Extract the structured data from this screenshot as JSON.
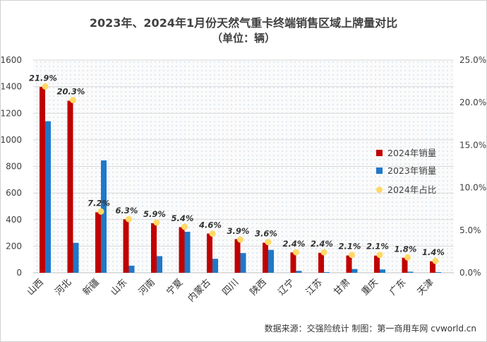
{
  "colors": {
    "bar2024": "#c00000",
    "bar2023": "#1f78c8",
    "marker": "#ffd966",
    "plotBg": "#fbfbfb",
    "dots": "#bcd3e6"
  },
  "chart_data": {
    "type": "bar",
    "title": "2023年、2024年1月份天然气重卡终端销售区域上牌量对比",
    "subtitle": "（单位：辆）",
    "categories": [
      "山西",
      "河北",
      "新疆",
      "山东",
      "河南",
      "宁夏",
      "内蒙古",
      "四川",
      "陕西",
      "辽宁",
      "江苏",
      "甘肃",
      "重庆",
      "广东",
      "天津"
    ],
    "series": [
      {
        "name": "2024年销量",
        "type": "bar",
        "axis": "left",
        "values": [
          1398,
          1294,
          455,
          402,
          373,
          343,
          295,
          253,
          226,
          153,
          150,
          130,
          129,
          113,
          86
        ]
      },
      {
        "name": "2023年销量",
        "type": "bar",
        "axis": "left",
        "values": [
          1140,
          225,
          845,
          53,
          125,
          308,
          105,
          148,
          172,
          14,
          5,
          28,
          25,
          8,
          5
        ]
      },
      {
        "name": "2024年占比",
        "type": "scatter",
        "axis": "right",
        "values": [
          21.9,
          20.3,
          7.2,
          6.3,
          5.9,
          5.4,
          4.6,
          3.9,
          3.6,
          2.4,
          2.4,
          2.1,
          2.1,
          1.8,
          1.4
        ],
        "labels": [
          "21.9%",
          "20.3%",
          "7.2%",
          "6.3%",
          "5.9%",
          "5.4%",
          "4.6%",
          "3.9%",
          "3.6%",
          "2.4%",
          "2.4%",
          "2.1%",
          "2.1%",
          "1.8%",
          "1.4%"
        ]
      }
    ],
    "y_left": {
      "min": 0,
      "max": 1600,
      "ticks": [
        "0",
        "200",
        "400",
        "600",
        "800",
        "1000",
        "1200",
        "1400",
        "1600"
      ]
    },
    "y_right": {
      "min": 0,
      "max": 25,
      "ticks": [
        "0.0%",
        "5.0%",
        "10.0%",
        "15.0%",
        "20.0%",
        "25.0%"
      ]
    },
    "grid": true,
    "legend": "right"
  },
  "footer": "数据来源：交强险统计  制图：第一商用车网 cvworld.cn"
}
